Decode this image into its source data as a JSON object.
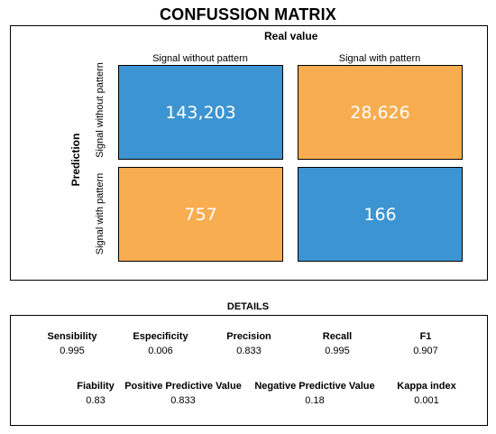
{
  "title": "CONFUSSION MATRIX",
  "chart_data": {
    "type": "heatmap",
    "title": "CONFUSSION MATRIX",
    "xlabel": "Real value",
    "ylabel": "Prediction",
    "columns": [
      "Signal without pattern",
      "Signal with pattern"
    ],
    "rows": [
      "Signal without pattern",
      "Signal with pattern"
    ],
    "values": [
      [
        143203,
        28626
      ],
      [
        757,
        166
      ]
    ],
    "value_labels": [
      [
        "143,203",
        "28,626"
      ],
      [
        "757",
        "166"
      ]
    ],
    "colors": {
      "correct": "#3C95D2",
      "incorrect": "#F7AD50"
    }
  },
  "details": {
    "title": "DETAILS",
    "row1": [
      {
        "label": "Sensibility",
        "value": "0.995"
      },
      {
        "label": "Especificity",
        "value": "0.006"
      },
      {
        "label": "Precision",
        "value": "0.833"
      },
      {
        "label": "Recall",
        "value": "0.995"
      },
      {
        "label": "F1",
        "value": "0.907"
      }
    ],
    "row2": [
      {
        "label": "Fiability",
        "value": "0.83"
      },
      {
        "label": "Positive Predictive Value",
        "value": "0.833"
      },
      {
        "label": "Negative Predictive Value",
        "value": "0.18"
      },
      {
        "label": "Kappa index",
        "value": "0.001"
      }
    ]
  }
}
